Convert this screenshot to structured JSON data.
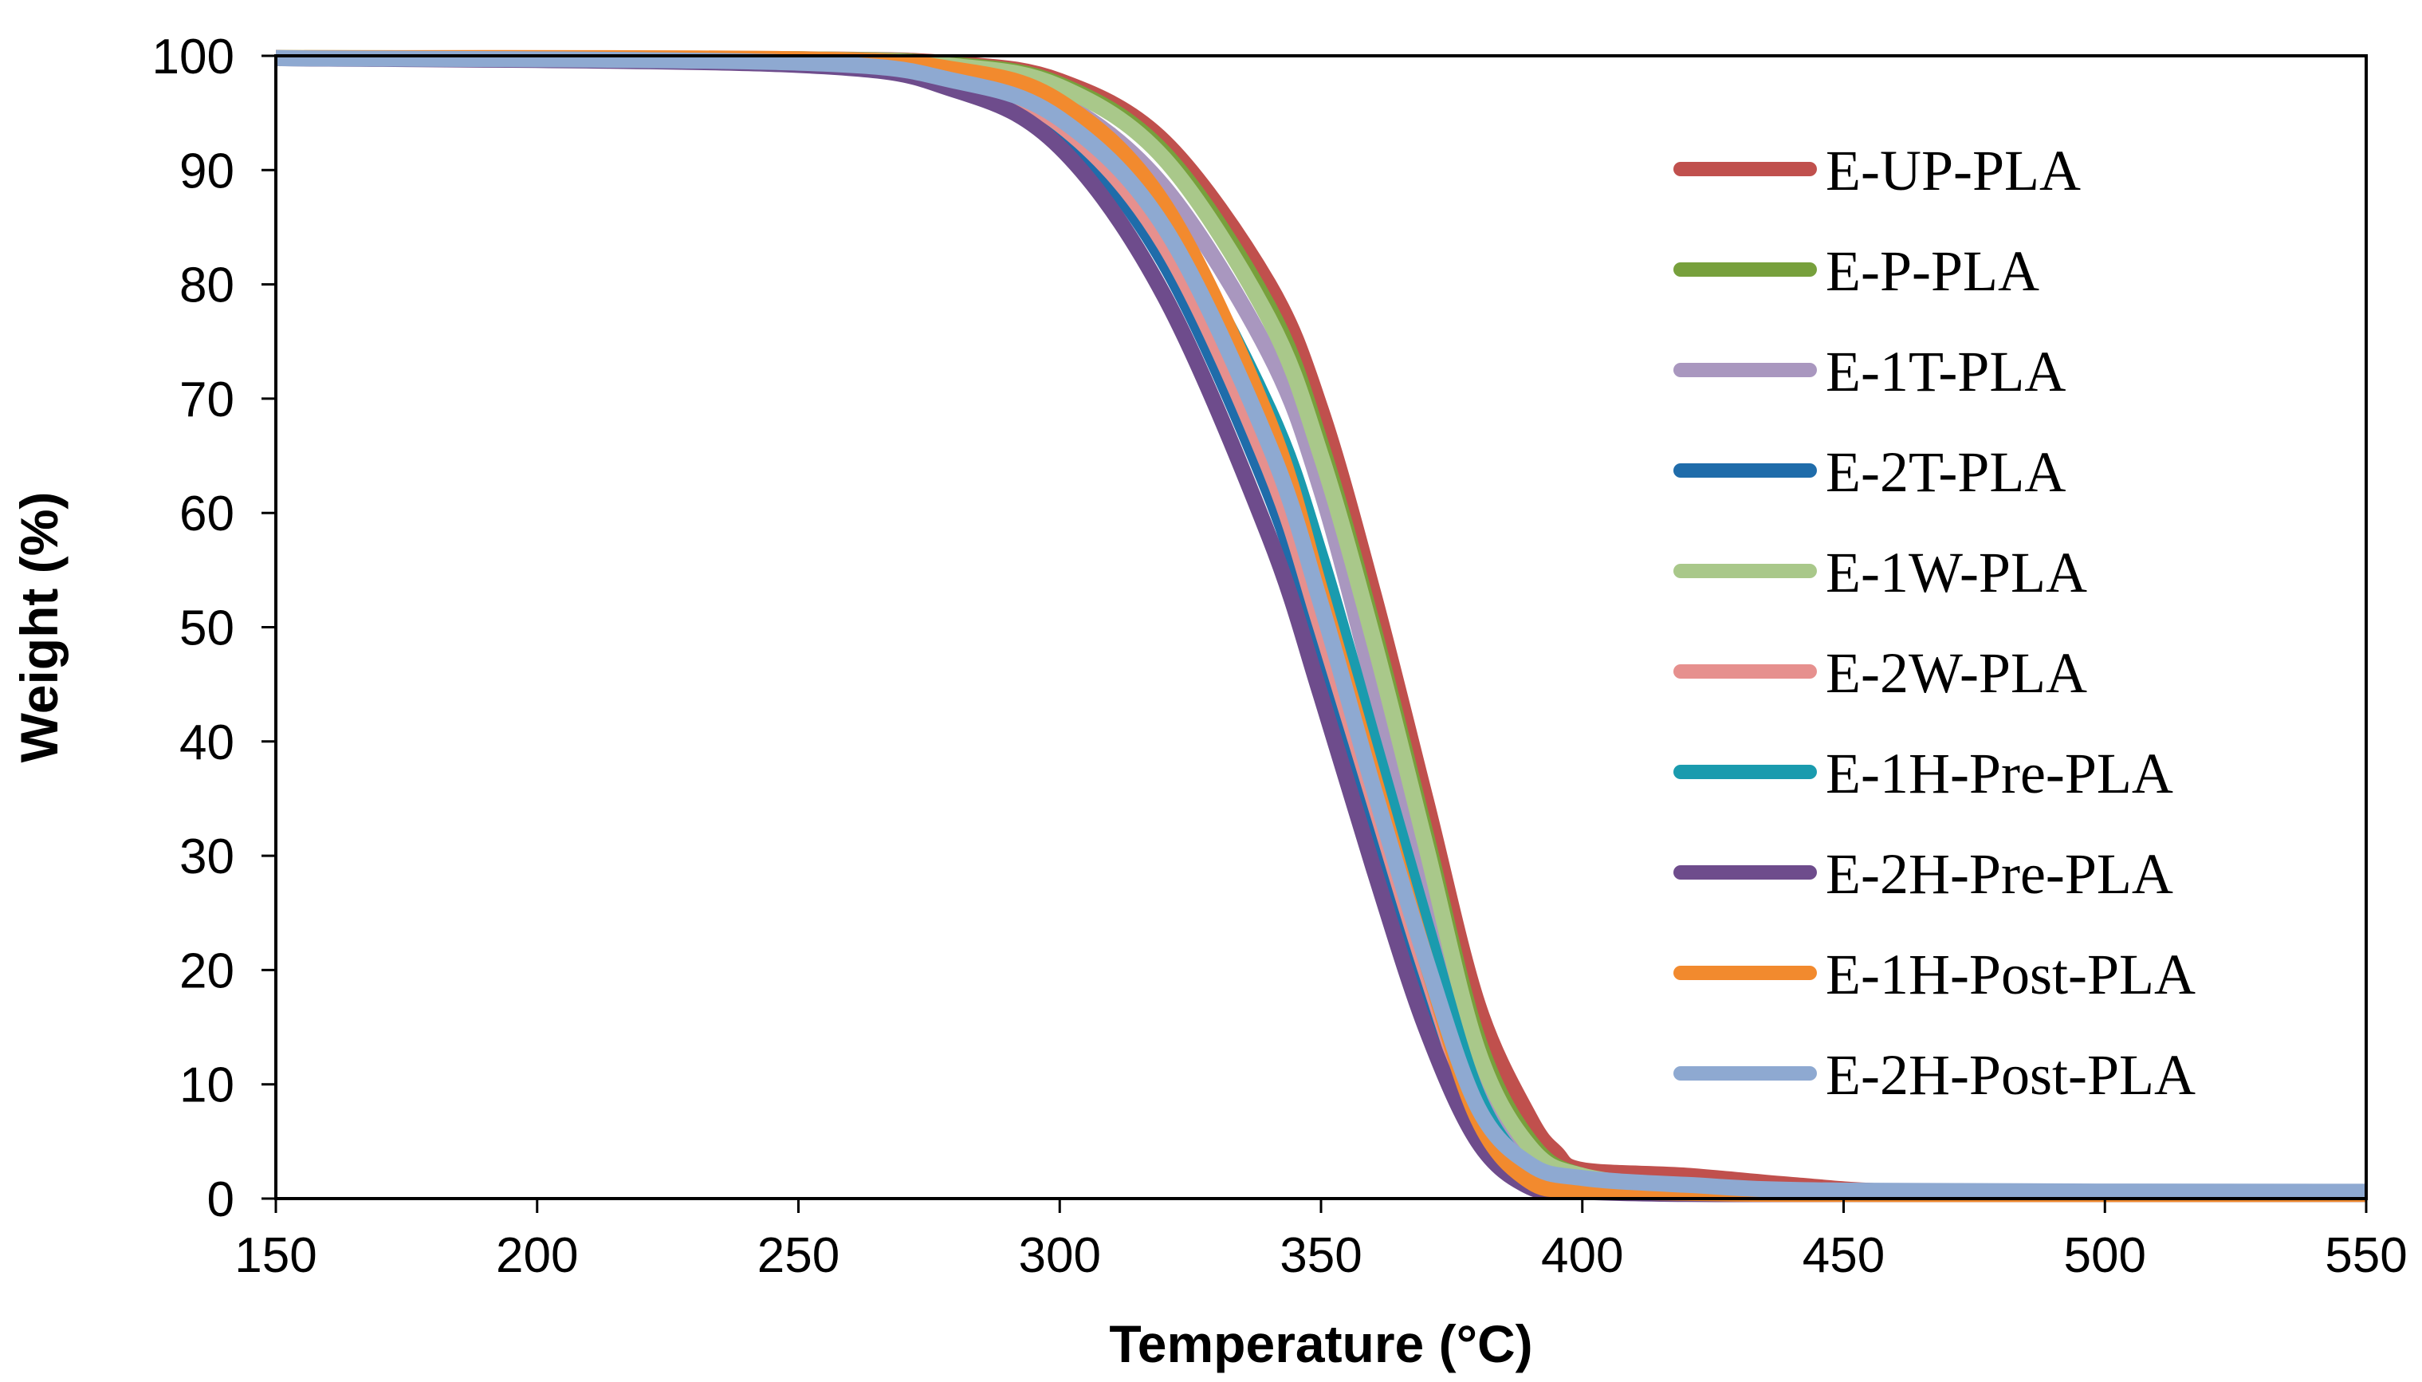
{
  "chart_data": {
    "type": "line",
    "title": "",
    "xlabel": "Temperature (°C)",
    "ylabel": "Weight (%)",
    "xlim": [
      150,
      550
    ],
    "ylim": [
      0,
      100
    ],
    "xticks": [
      150,
      200,
      250,
      300,
      350,
      400,
      450,
      500,
      550
    ],
    "yticks": [
      0,
      10,
      20,
      30,
      40,
      50,
      60,
      70,
      80,
      90,
      100
    ],
    "grid": false,
    "legend_position": "right",
    "series": [
      {
        "name": "E-UP-PLA",
        "color": "#C0504D",
        "x": [
          150,
          250,
          280,
          300,
          320,
          340,
          350,
          360,
          370,
          380,
          390,
          395,
          400,
          420,
          440,
          460,
          500,
          550
        ],
        "y": [
          99.8,
          99.7,
          99.3,
          97.8,
          92.5,
          80,
          69,
          53,
          35,
          17,
          7,
          4,
          2.5,
          2,
          1.2,
          0.6,
          0.5,
          0.5
        ]
      },
      {
        "name": "E-P-PLA",
        "color": "#77A03C",
        "x": [
          150,
          250,
          280,
          300,
          320,
          340,
          350,
          360,
          370,
          380,
          390,
          400,
          420,
          450,
          550
        ],
        "y": [
          99.8,
          99.7,
          99.2,
          97.5,
          91.5,
          78,
          66,
          50,
          32,
          14,
          5,
          2,
          1,
          0.6,
          0.5
        ]
      },
      {
        "name": "E-1T-PLA",
        "color": "#A997BF",
        "x": [
          150,
          250,
          280,
          300,
          320,
          340,
          350,
          360,
          370,
          380,
          390,
          400,
          420,
          450,
          550
        ],
        "y": [
          99.8,
          99.6,
          98.6,
          96,
          88.5,
          74,
          62,
          45,
          27,
          11,
          4,
          1.5,
          0.9,
          0.6,
          0.5
        ]
      },
      {
        "name": "E-2T-PLA",
        "color": "#1F6CAA",
        "x": [
          150,
          250,
          280,
          300,
          320,
          340,
          350,
          360,
          370,
          380,
          390,
          400,
          420,
          450,
          550
        ],
        "y": [
          99.8,
          99.4,
          97.5,
          93.5,
          82,
          62,
          48,
          33,
          18,
          6,
          1.5,
          0.8,
          0.5,
          0.4,
          0.4
        ]
      },
      {
        "name": "E-1W-PLA",
        "color": "#A9C88A",
        "x": [
          150,
          250,
          280,
          300,
          320,
          340,
          350,
          360,
          370,
          380,
          390,
          400,
          420,
          450,
          550
        ],
        "y": [
          99.8,
          99.7,
          99.1,
          97.3,
          91,
          77,
          65,
          49,
          31,
          13,
          4.5,
          2,
          1,
          0.6,
          0.5
        ]
      },
      {
        "name": "E-2W-PLA",
        "color": "#E6908E",
        "x": [
          150,
          250,
          280,
          300,
          320,
          340,
          350,
          360,
          370,
          380,
          390,
          400,
          420,
          450,
          550
        ],
        "y": [
          99.8,
          99.5,
          97.8,
          94,
          83.5,
          64,
          50,
          35,
          20,
          7,
          2,
          1,
          0.6,
          0.5,
          0.5
        ]
      },
      {
        "name": "E-1H-Pre-PLA",
        "color": "#1A9BAE",
        "x": [
          150,
          250,
          280,
          300,
          320,
          340,
          350,
          360,
          370,
          380,
          390,
          400,
          420,
          450,
          550
        ],
        "y": [
          99.8,
          99.6,
          98.3,
          95.5,
          86,
          69,
          56,
          40,
          24,
          9,
          2.5,
          1.2,
          0.7,
          0.5,
          0.5
        ]
      },
      {
        "name": "E-2H-Pre-PLA",
        "color": "#6E4C8C",
        "x": [
          150,
          250,
          280,
          300,
          320,
          340,
          350,
          360,
          370,
          380,
          390,
          400,
          420,
          450,
          550
        ],
        "y": [
          99.8,
          99.2,
          97,
          92,
          79,
          58,
          44,
          29,
          15,
          5,
          1,
          0.6,
          0.4,
          0.4,
          0.4
        ]
      },
      {
        "name": "E-1H-Post-PLA",
        "color": "#F28A2E",
        "x": [
          150,
          250,
          280,
          300,
          320,
          340,
          350,
          360,
          370,
          380,
          390,
          400,
          420,
          450,
          550
        ],
        "y": [
          99.8,
          99.7,
          98.8,
          96,
          87,
          68,
          53,
          37,
          21,
          7,
          1.5,
          0.8,
          0.5,
          0.4,
          0.4
        ]
      },
      {
        "name": "E-2H-Post-PLA",
        "color": "#8EA9D1",
        "x": [
          150,
          250,
          280,
          300,
          320,
          340,
          350,
          360,
          370,
          380,
          390,
          400,
          420,
          450,
          550
        ],
        "y": [
          99.8,
          99.4,
          97.8,
          94.5,
          85,
          66,
          52,
          36,
          21,
          8,
          3,
          1.8,
          1.2,
          0.7,
          0.6
        ]
      }
    ]
  }
}
